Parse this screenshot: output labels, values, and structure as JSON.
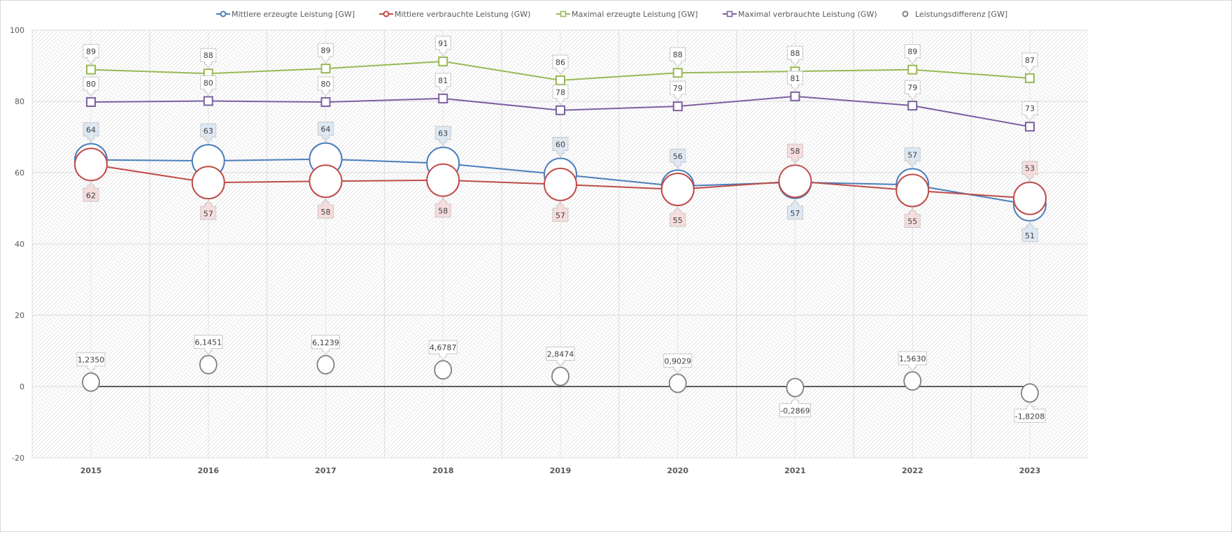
{
  "chart_data": {
    "type": "line",
    "title": "",
    "xlabel": "",
    "ylabel": "",
    "ylim": [
      -20,
      100
    ],
    "yticks": [
      100,
      80,
      60,
      40,
      20,
      0,
      -20
    ],
    "grid": true,
    "legend_position": "top",
    "categories": [
      "2015",
      "2016",
      "2017",
      "2018",
      "2019",
      "2020",
      "2021",
      "2022",
      "2023"
    ],
    "series": [
      {
        "name": "Mittlere erzeugte Leistung [GW]",
        "color": "#4a7ebb",
        "marker": "circle",
        "values": [
          63.6,
          63.3,
          63.8,
          62.6,
          59.5,
          56.2,
          57.3,
          56.6,
          51.0
        ],
        "labels": [
          "64",
          "63",
          "64",
          "63",
          "60",
          "56",
          "57",
          "57",
          "51"
        ],
        "label_fill": "#dde8f3"
      },
      {
        "name": "Mittlere verbrauchte Leistung (GW)",
        "color": "#be4b48",
        "marker": "circle",
        "values": [
          62.3,
          57.2,
          57.6,
          57.9,
          56.7,
          55.3,
          57.6,
          55.0,
          52.8
        ],
        "labels": [
          "62",
          "57",
          "58",
          "58",
          "57",
          "55",
          "58",
          "55",
          "53"
        ],
        "label_fill": "#f6dcdc"
      },
      {
        "name": "Maximal erzeugte Leistung [GW]",
        "color": "#98b954",
        "marker": "square",
        "values": [
          88.9,
          87.8,
          89.2,
          91.2,
          85.9,
          88.0,
          88.4,
          88.9,
          86.5
        ],
        "labels": [
          "89",
          "88",
          "89",
          "91",
          "86",
          "88",
          "88",
          "89",
          "87"
        ],
        "label_fill": "#ffffff"
      },
      {
        "name": "Maximal verbrauchte Leistung (GW)",
        "color": "#7d5fa0",
        "marker": "square",
        "values": [
          79.8,
          80.1,
          79.8,
          80.8,
          77.5,
          78.6,
          81.4,
          78.8,
          72.9
        ],
        "labels": [
          "80",
          "80",
          "80",
          "81",
          "78",
          "79",
          "81",
          "79",
          "73"
        ],
        "label_fill": "#ffffff"
      },
      {
        "name": "Leistungsdifferenz [GW]",
        "color": "#7f7f7f",
        "marker": "circle",
        "values": [
          1.235,
          6.1451,
          6.1239,
          4.6787,
          2.8474,
          0.9029,
          -0.2869,
          1.563,
          -1.8208
        ],
        "labels": [
          "1,2350",
          "6,1451",
          "6,1239",
          "4,6787",
          "2,8474",
          "0,9029",
          "-0,2869",
          "1,5630",
          "-1,8208"
        ],
        "label_fill": "#ffffff"
      }
    ],
    "zero_line_color": "#000000"
  }
}
